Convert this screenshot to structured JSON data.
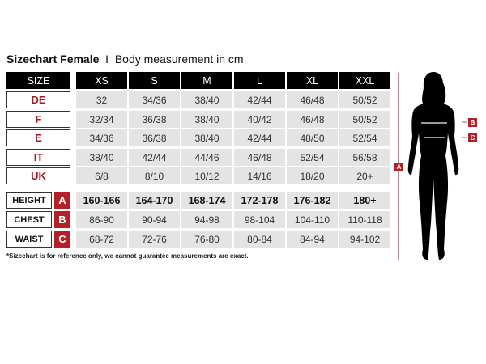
{
  "title": {
    "bold": "Sizechart Female",
    "separator": "I",
    "subtitle": "Body measurement in cm"
  },
  "header": {
    "size_label": "SIZE",
    "sizes": [
      "XS",
      "S",
      "M",
      "L",
      "XL",
      "XXL"
    ]
  },
  "size_rows": [
    {
      "label": "DE",
      "values": [
        "32",
        "34/36",
        "38/40",
        "42/44",
        "46/48",
        "50/52"
      ]
    },
    {
      "label": "F",
      "values": [
        "32/34",
        "36/38",
        "38/40",
        "40/42",
        "46/48",
        "50/52"
      ]
    },
    {
      "label": "E",
      "values": [
        "34/36",
        "36/38",
        "38/40",
        "42/44",
        "48/50",
        "52/54"
      ]
    },
    {
      "label": "IT",
      "values": [
        "38/40",
        "42/44",
        "44/46",
        "46/48",
        "52/54",
        "56/58"
      ]
    },
    {
      "label": "UK",
      "values": [
        "6/8",
        "8/10",
        "10/12",
        "14/16",
        "18/20",
        "20+"
      ]
    }
  ],
  "measure_rows": [
    {
      "label": "HEIGHT",
      "letter": "A",
      "values": [
        "160-166",
        "164-170",
        "168-174",
        "172-178",
        "176-182",
        "180+"
      ]
    },
    {
      "label": "CHEST",
      "letter": "B",
      "values": [
        "86-90",
        "90-94",
        "94-98",
        "98-104",
        "104-110",
        "110-118"
      ]
    },
    {
      "label": "WAIST",
      "letter": "C",
      "values": [
        "68-72",
        "72-76",
        "76-80",
        "80-84",
        "84-94",
        "94-102"
      ]
    }
  ],
  "footnote": "*Sizechart is for reference only, we cannot guarantee measurements are exact.",
  "figure": {
    "height_tag": "A",
    "chest_tag": "B",
    "waist_tag": "C"
  },
  "colors": {
    "accent": "#b51f27",
    "header": "#000000",
    "cell": "#e4e4e4"
  }
}
